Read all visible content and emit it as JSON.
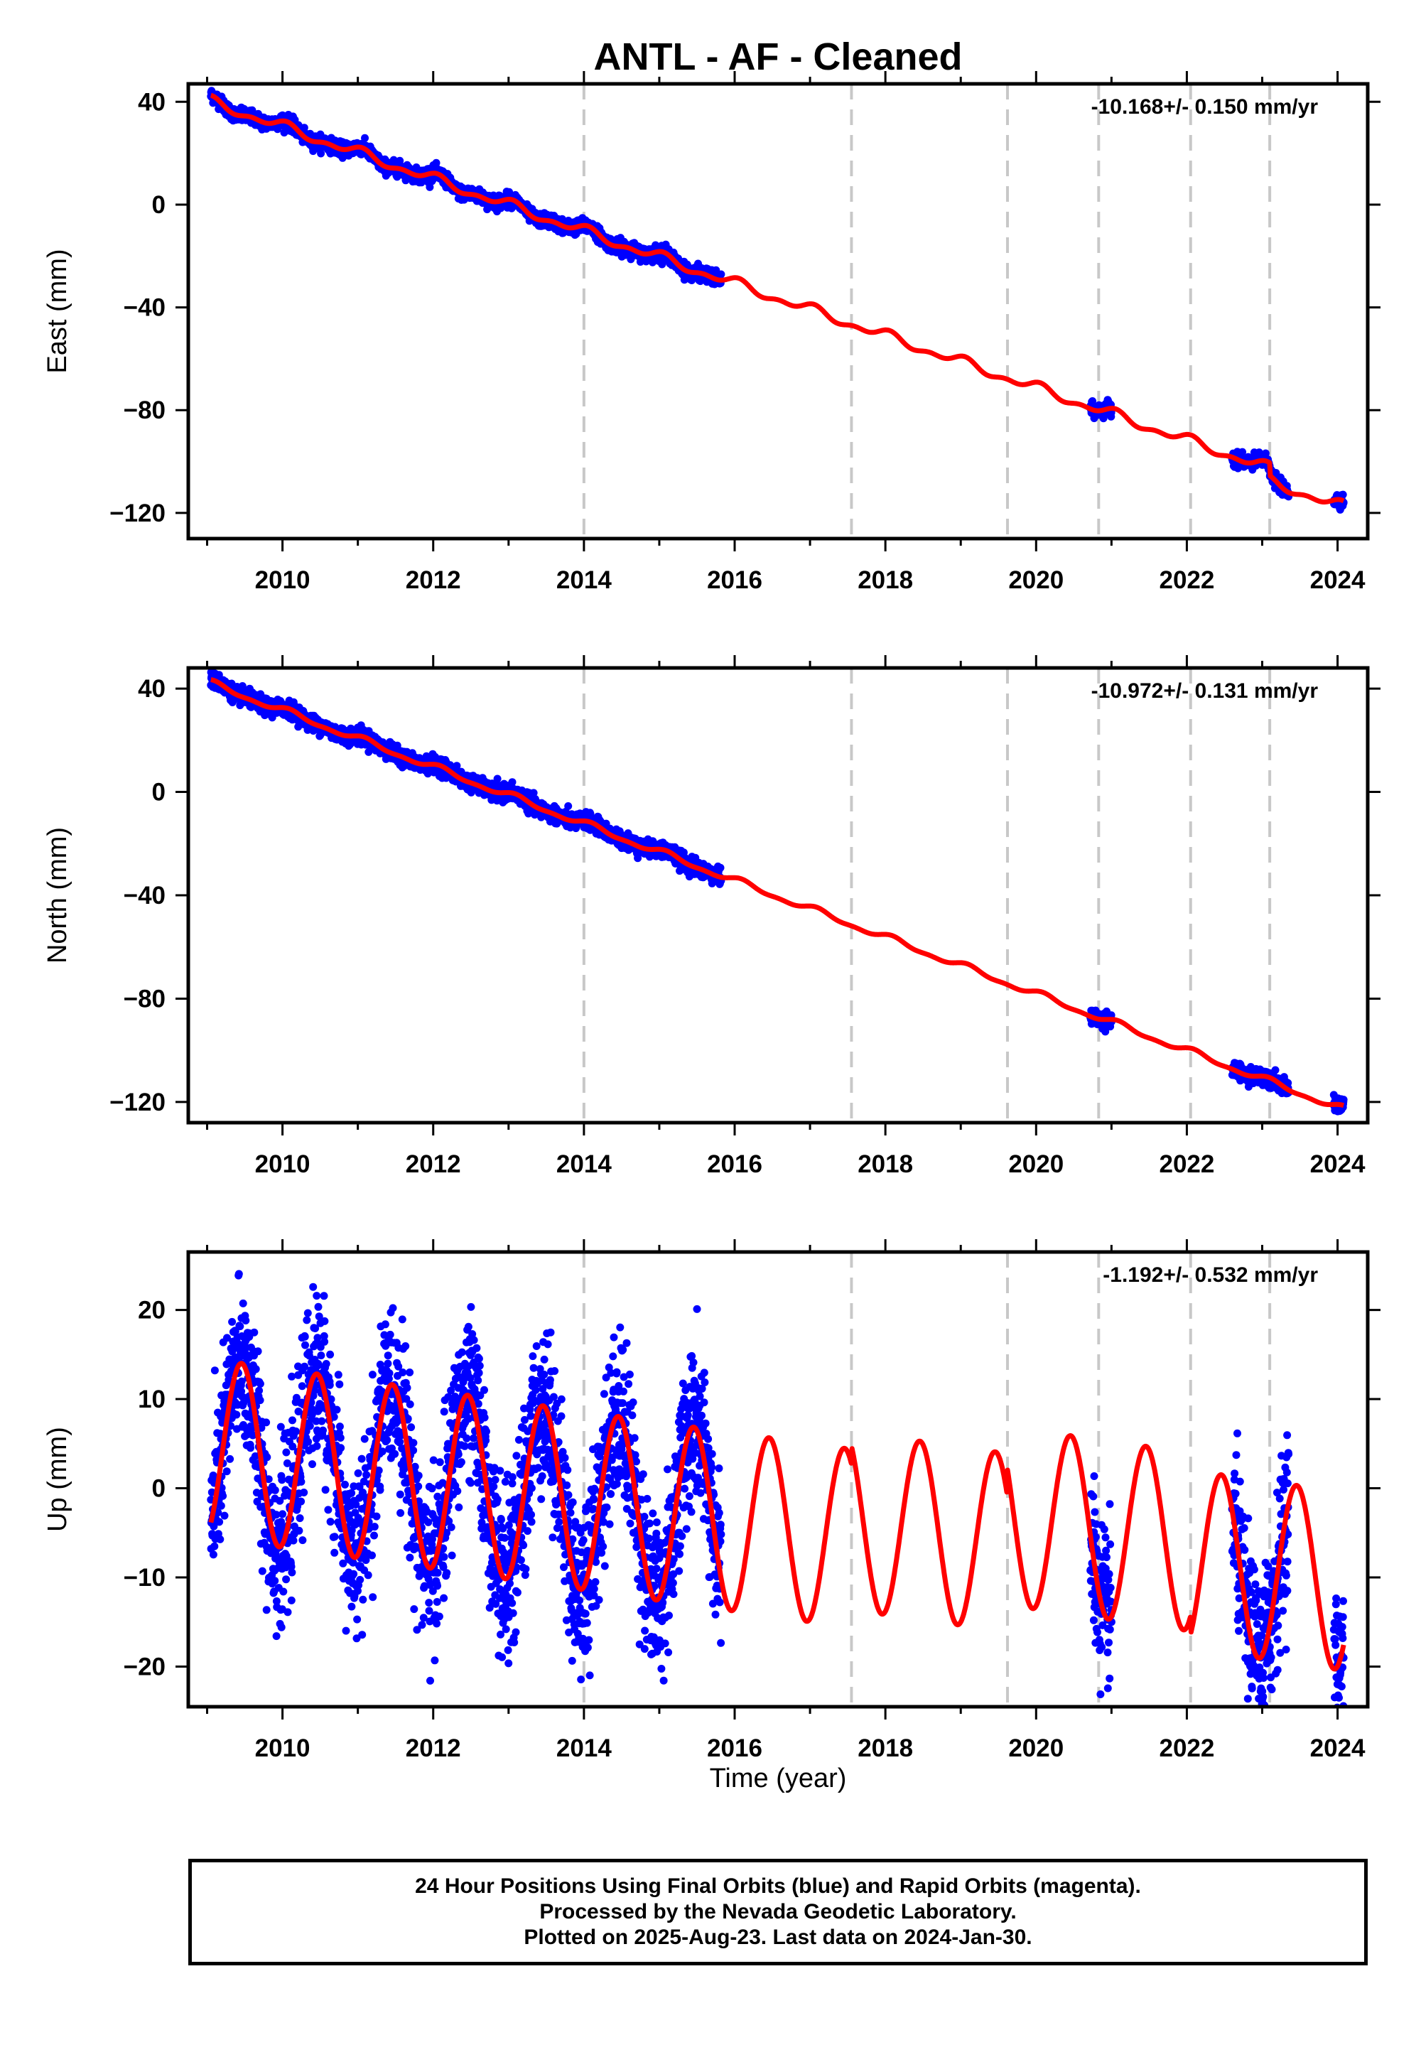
{
  "title": "ANTL  - AF - Cleaned",
  "xlabel": "Time (year)",
  "footer": {
    "line1": "24 Hour Positions Using Final Orbits (blue) and Rapid Orbits (magenta).",
    "line2": "Processed by the Nevada Geodetic Laboratory.",
    "line3": "Plotted on 2025-Aug-23. Last data on 2024-Jan-30."
  },
  "colors": {
    "data": "#0000ff",
    "model": "#ff0000",
    "breaks": "#c8c8c8",
    "frame": "#000000"
  },
  "chart_data": [
    {
      "type": "scatter",
      "component": "East",
      "ylabel": "East (mm)",
      "rate_label": "-10.168+/- 0.150 mm/yr",
      "xlim": [
        2008.75,
        2024.4
      ],
      "ylim": [
        -130,
        47
      ],
      "xticks": [
        2010,
        2012,
        2014,
        2016,
        2018,
        2020,
        2022,
        2024
      ],
      "yticks": [
        40,
        0,
        -40,
        -80,
        -120
      ],
      "ytick_labels": [
        "40",
        "0",
        "−40",
        "−80",
        "−120"
      ],
      "breaks": [
        2014.0,
        2017.55,
        2019.62,
        2020.83,
        2022.05,
        2023.1
      ],
      "data_segments": [
        [
          2009.05,
          2015.82
        ],
        [
          2020.72,
          2021.0
        ],
        [
          2022.6,
          2023.35
        ],
        [
          2023.95,
          2024.08
        ]
      ],
      "model": {
        "rate": -10.168,
        "intercept": 40,
        "t0": 2009.05,
        "annual": 1.6,
        "semiannual": 1.0,
        "phase": 1.4,
        "noise": 1.3
      },
      "offsets": [
        {
          "x": 2023.1,
          "dy": -5
        }
      ]
    },
    {
      "type": "scatter",
      "component": "North",
      "ylabel": "North (mm)",
      "rate_label": "-10.972+/- 0.131 mm/yr",
      "xlim": [
        2008.75,
        2024.4
      ],
      "ylim": [
        -128,
        48
      ],
      "xticks": [
        2010,
        2012,
        2014,
        2016,
        2018,
        2020,
        2022,
        2024
      ],
      "yticks": [
        40,
        0,
        -40,
        -80,
        -120
      ],
      "ytick_labels": [
        "40",
        "0",
        "−40",
        "−80",
        "−120"
      ],
      "breaks": [
        2014.0,
        2017.55,
        2019.62,
        2020.83,
        2022.05,
        2023.1
      ],
      "data_segments": [
        [
          2009.05,
          2015.82
        ],
        [
          2020.72,
          2021.0
        ],
        [
          2022.6,
          2023.35
        ],
        [
          2023.95,
          2024.08
        ]
      ],
      "model": {
        "rate": -10.972,
        "intercept": 42,
        "t0": 2009.05,
        "annual": 1.1,
        "semiannual": 0.5,
        "phase": 0.9,
        "noise": 1.5
      },
      "offsets": []
    },
    {
      "type": "scatter",
      "component": "Up",
      "ylabel": "Up (mm)",
      "rate_label": "-1.192+/- 0.532 mm/yr",
      "xlim": [
        2008.75,
        2024.4
      ],
      "ylim": [
        -24.5,
        26.5
      ],
      "xticks": [
        2010,
        2012,
        2014,
        2016,
        2018,
        2020,
        2022,
        2024
      ],
      "yticks": [
        20,
        10,
        0,
        -10,
        -20
      ],
      "ytick_labels": [
        "20",
        "10",
        "0",
        "−10",
        "−20"
      ],
      "breaks": [
        2014.0,
        2017.55,
        2019.62,
        2020.83,
        2022.05,
        2023.1
      ],
      "data_segments": [
        [
          2009.05,
          2015.82
        ],
        [
          2020.72,
          2021.0
        ],
        [
          2022.6,
          2023.35
        ],
        [
          2023.95,
          2024.08
        ]
      ],
      "model": {
        "rate": -1.192,
        "intercept": 4.5,
        "t0": 2009.05,
        "annual": 10.0,
        "semiannual": 0.0,
        "phase": -1.3,
        "noise": 4.5
      },
      "offsets": [
        {
          "x": 2017.55,
          "dy": 2
        },
        {
          "x": 2019.62,
          "dy": 3
        },
        {
          "x": 2022.05,
          "dy": -2
        }
      ]
    }
  ]
}
